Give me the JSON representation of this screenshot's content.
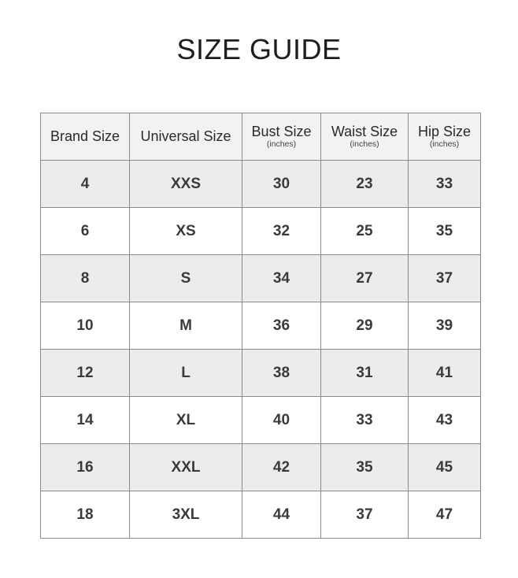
{
  "title": "SIZE GUIDE",
  "headers": [
    {
      "label": "Brand Size",
      "unit": ""
    },
    {
      "label": "Universal Size",
      "unit": ""
    },
    {
      "label": "Bust Size",
      "unit": "(inches)"
    },
    {
      "label": "Waist Size",
      "unit": "(inches)"
    },
    {
      "label": "Hip Size",
      "unit": "(inches)"
    }
  ],
  "rows": [
    [
      "4",
      "XXS",
      "30",
      "23",
      "33"
    ],
    [
      "6",
      "XS",
      "32",
      "25",
      "35"
    ],
    [
      "8",
      "S",
      "34",
      "27",
      "37"
    ],
    [
      "10",
      "M",
      "36",
      "29",
      "39"
    ],
    [
      "12",
      "L",
      "38",
      "31",
      "41"
    ],
    [
      "14",
      "XL",
      "40",
      "33",
      "43"
    ],
    [
      "16",
      "XXL",
      "42",
      "35",
      "45"
    ],
    [
      "18",
      "3XL",
      "44",
      "37",
      "47"
    ]
  ]
}
